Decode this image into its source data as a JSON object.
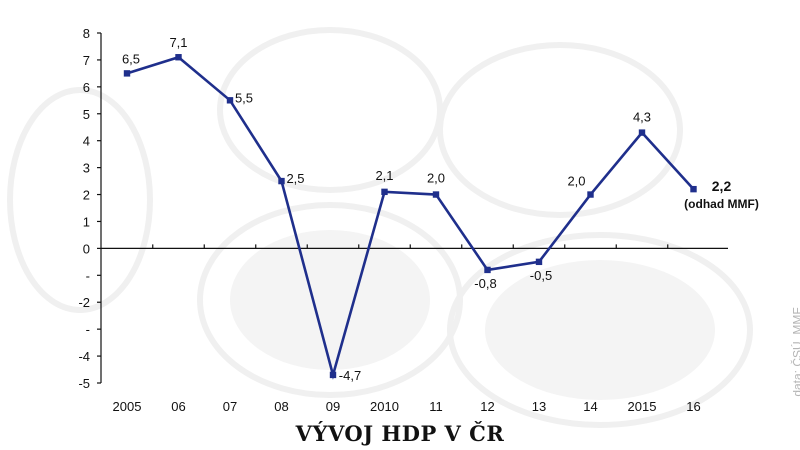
{
  "title": "VÝVOJ HDP V ČR",
  "source": "data: ČSÚ, MMF",
  "colors": {
    "line": "#1f2f8c",
    "axis": "#111111"
  },
  "chart_data": {
    "type": "line",
    "categories": [
      "2005",
      "06",
      "07",
      "08",
      "09",
      "2010",
      "11",
      "12",
      "13",
      "14",
      "2015",
      "16"
    ],
    "values": [
      6.5,
      7.1,
      5.5,
      2.5,
      -4.7,
      2.1,
      2.0,
      -0.8,
      -0.5,
      2.0,
      4.3,
      2.2
    ],
    "value_labels": [
      "6,5",
      "7,1",
      "5,5",
      "2,5",
      "-4,7",
      "2,1",
      "2,0",
      "-0,8",
      "-0,5",
      "2,0",
      "4,3",
      "2,2"
    ],
    "y_ticks": [
      8,
      7,
      6,
      5,
      4,
      3,
      2,
      1,
      0,
      -1,
      -2,
      -3,
      -4,
      -5
    ],
    "y_tick_labels": [
      "8",
      "7",
      "6",
      "5",
      "4",
      "3",
      "2",
      "1",
      "0",
      "-",
      "-2",
      "-",
      "-4",
      "-5"
    ],
    "ylim": [
      -5,
      8
    ],
    "last_point_note": "(odhad MMF)",
    "grid": false,
    "legend": "none"
  }
}
